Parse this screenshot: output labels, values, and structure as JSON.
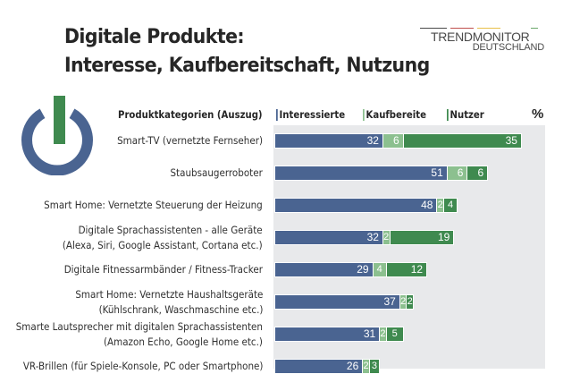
{
  "header": {
    "title_line1": "Digitale Produkte:",
    "title_line2": "Interesse, Kaufbereitschaft, Nutzung"
  },
  "logo": {
    "line1": "TRENDMONITOR",
    "line2": "DEUTSCHLAND",
    "stripe_colors": [
      "#4a4a4a",
      "#c0504d",
      "#e8c04a",
      "#6aa86a"
    ]
  },
  "icon": {
    "name": "power-icon",
    "ring_color": "#4a6491",
    "bar_color": "#3f8a4f"
  },
  "chart_data": {
    "type": "bar",
    "orientation": "horizontal",
    "stacked": true,
    "title": "Digitale Produkte: Interesse, Kaufbereitschaft, Nutzung",
    "category_header": "Produktkategorien (Auszug)",
    "unit_label": "%",
    "legend_placement": "top",
    "categories": [
      [
        "Smart-TV (vernetzte Fernseher)"
      ],
      [
        "Staubsaugerroboter"
      ],
      [
        "Smart Home: Vernetzte Steuerung der Heizung"
      ],
      [
        "Digitale Sprachassistenten - alle Geräte",
        "(Alexa, Siri, Google Assistant, Cortana etc.)"
      ],
      [
        "Digitale Fitnessarmbänder / Fitness-Tracker"
      ],
      [
        "Smart Home: Vernetzte Haushaltsgeräte",
        "(Kühlschrank, Waschmaschine etc.)"
      ],
      [
        "Smarte Lautsprecher mit digitalen Sprachassistenten",
        "(Amazon Echo, Google Home etc.)"
      ],
      [
        "VR-Brillen (für Spiele-Konsole, PC oder Smartphone)"
      ]
    ],
    "series": [
      {
        "name": "Interessierte",
        "color": "#4a6491",
        "values": [
          32,
          51,
          48,
          32,
          29,
          37,
          31,
          26
        ]
      },
      {
        "name": "Kaufbereite",
        "color": "#8cc08f",
        "values": [
          6,
          6,
          2,
          2,
          4,
          2,
          2,
          2
        ]
      },
      {
        "name": "Nutzer",
        "color": "#3f8a4f",
        "values": [
          35,
          6,
          4,
          19,
          12,
          2,
          5,
          3
        ]
      }
    ]
  }
}
